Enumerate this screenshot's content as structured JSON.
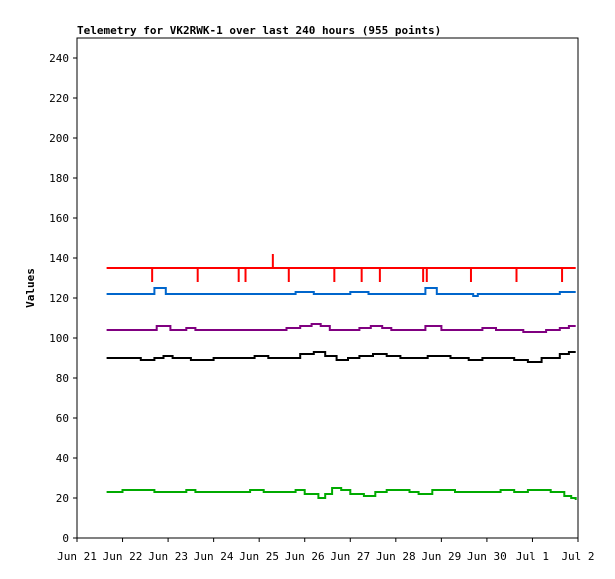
{
  "chart_data": {
    "type": "line",
    "title": "Telemetry for VK2RWK-1 over last 240 hours (955 points)",
    "xlabel": "",
    "ylabel": "Values",
    "x_tick_labels": [
      "Jun 21",
      "Jun 22",
      "Jun 23",
      "Jun 24",
      "Jun 25",
      "Jun 26",
      "Jun 27",
      "Jun 28",
      "Jun 29",
      "Jun 30",
      "Jul 1",
      "Jul 2"
    ],
    "xlim_days": [
      0,
      11
    ],
    "ylim": [
      0,
      250
    ],
    "y_ticks": [
      0,
      20,
      40,
      60,
      80,
      100,
      120,
      140,
      160,
      180,
      200,
      220,
      240
    ],
    "grid": false,
    "legend": "none",
    "series": [
      {
        "color": "#ff0000",
        "base": 135,
        "points": [
          {
            "x": 0.65,
            "y": 135
          },
          {
            "x": 1.65,
            "y": 135
          },
          {
            "x": 10.95,
            "y": 135
          }
        ],
        "spikes": [
          {
            "x": 1.65,
            "y": 128
          },
          {
            "x": 2.65,
            "y": 128
          },
          {
            "x": 3.55,
            "y": 128
          },
          {
            "x": 3.7,
            "y": 128
          },
          {
            "x": 4.3,
            "y": 142
          },
          {
            "x": 4.65,
            "y": 128
          },
          {
            "x": 5.65,
            "y": 128
          },
          {
            "x": 6.25,
            "y": 128
          },
          {
            "x": 6.65,
            "y": 128
          },
          {
            "x": 7.6,
            "y": 128
          },
          {
            "x": 7.68,
            "y": 128
          },
          {
            "x": 8.65,
            "y": 128
          },
          {
            "x": 9.65,
            "y": 128
          },
          {
            "x": 10.65,
            "y": 128
          }
        ]
      },
      {
        "color": "#0066cc",
        "points": [
          {
            "x": 0.65,
            "y": 122
          },
          {
            "x": 1.65,
            "y": 122
          },
          {
            "x": 1.7,
            "y": 125
          },
          {
            "x": 1.9,
            "y": 125
          },
          {
            "x": 1.95,
            "y": 122
          },
          {
            "x": 4.7,
            "y": 122
          },
          {
            "x": 4.8,
            "y": 123
          },
          {
            "x": 5.1,
            "y": 123
          },
          {
            "x": 5.2,
            "y": 122
          },
          {
            "x": 5.9,
            "y": 122
          },
          {
            "x": 6.0,
            "y": 123
          },
          {
            "x": 6.3,
            "y": 123
          },
          {
            "x": 6.4,
            "y": 122
          },
          {
            "x": 7.6,
            "y": 122
          },
          {
            "x": 7.65,
            "y": 125
          },
          {
            "x": 7.85,
            "y": 125
          },
          {
            "x": 7.9,
            "y": 122
          },
          {
            "x": 8.6,
            "y": 122
          },
          {
            "x": 8.7,
            "y": 121
          },
          {
            "x": 8.8,
            "y": 122
          },
          {
            "x": 10.5,
            "y": 122
          },
          {
            "x": 10.6,
            "y": 123
          },
          {
            "x": 10.95,
            "y": 123
          }
        ]
      },
      {
        "color": "#800080",
        "points": [
          {
            "x": 0.65,
            "y": 104
          },
          {
            "x": 1.65,
            "y": 104
          },
          {
            "x": 1.75,
            "y": 106
          },
          {
            "x": 1.95,
            "y": 106
          },
          {
            "x": 2.05,
            "y": 104
          },
          {
            "x": 2.4,
            "y": 105
          },
          {
            "x": 2.6,
            "y": 104
          },
          {
            "x": 4.3,
            "y": 104
          },
          {
            "x": 4.6,
            "y": 105
          },
          {
            "x": 4.9,
            "y": 106
          },
          {
            "x": 5.15,
            "y": 107
          },
          {
            "x": 5.35,
            "y": 106
          },
          {
            "x": 5.55,
            "y": 104
          },
          {
            "x": 6.2,
            "y": 105
          },
          {
            "x": 6.45,
            "y": 106
          },
          {
            "x": 6.7,
            "y": 105
          },
          {
            "x": 6.9,
            "y": 104
          },
          {
            "x": 7.5,
            "y": 104
          },
          {
            "x": 7.65,
            "y": 106
          },
          {
            "x": 7.85,
            "y": 106
          },
          {
            "x": 8.0,
            "y": 104
          },
          {
            "x": 8.6,
            "y": 104
          },
          {
            "x": 8.9,
            "y": 105
          },
          {
            "x": 9.2,
            "y": 104
          },
          {
            "x": 9.8,
            "y": 103
          },
          {
            "x": 10.3,
            "y": 104
          },
          {
            "x": 10.6,
            "y": 105
          },
          {
            "x": 10.8,
            "y": 106
          },
          {
            "x": 10.95,
            "y": 106
          }
        ]
      },
      {
        "color": "#000000",
        "points": [
          {
            "x": 0.65,
            "y": 90
          },
          {
            "x": 1.2,
            "y": 90
          },
          {
            "x": 1.4,
            "y": 89
          },
          {
            "x": 1.7,
            "y": 90
          },
          {
            "x": 1.9,
            "y": 91
          },
          {
            "x": 2.1,
            "y": 90
          },
          {
            "x": 2.5,
            "y": 89
          },
          {
            "x": 3.0,
            "y": 90
          },
          {
            "x": 3.5,
            "y": 90
          },
          {
            "x": 3.9,
            "y": 91
          },
          {
            "x": 4.2,
            "y": 90
          },
          {
            "x": 4.6,
            "y": 90
          },
          {
            "x": 4.9,
            "y": 92
          },
          {
            "x": 5.2,
            "y": 93
          },
          {
            "x": 5.45,
            "y": 91
          },
          {
            "x": 5.7,
            "y": 89
          },
          {
            "x": 5.95,
            "y": 90
          },
          {
            "x": 6.2,
            "y": 91
          },
          {
            "x": 6.5,
            "y": 92
          },
          {
            "x": 6.8,
            "y": 91
          },
          {
            "x": 7.1,
            "y": 90
          },
          {
            "x": 7.5,
            "y": 90
          },
          {
            "x": 7.7,
            "y": 91
          },
          {
            "x": 7.95,
            "y": 91
          },
          {
            "x": 8.2,
            "y": 90
          },
          {
            "x": 8.6,
            "y": 89
          },
          {
            "x": 8.9,
            "y": 90
          },
          {
            "x": 9.4,
            "y": 90
          },
          {
            "x": 9.6,
            "y": 89
          },
          {
            "x": 9.9,
            "y": 88
          },
          {
            "x": 10.2,
            "y": 90
          },
          {
            "x": 10.6,
            "y": 92
          },
          {
            "x": 10.8,
            "y": 93
          },
          {
            "x": 10.95,
            "y": 93
          }
        ]
      },
      {
        "color": "#00aa00",
        "points": [
          {
            "x": 0.65,
            "y": 23
          },
          {
            "x": 1.0,
            "y": 24
          },
          {
            "x": 1.5,
            "y": 24
          },
          {
            "x": 1.7,
            "y": 23
          },
          {
            "x": 2.2,
            "y": 23
          },
          {
            "x": 2.4,
            "y": 24
          },
          {
            "x": 2.6,
            "y": 23
          },
          {
            "x": 3.6,
            "y": 23
          },
          {
            "x": 3.8,
            "y": 24
          },
          {
            "x": 4.1,
            "y": 23
          },
          {
            "x": 4.6,
            "y": 23
          },
          {
            "x": 4.8,
            "y": 24
          },
          {
            "x": 5.0,
            "y": 22
          },
          {
            "x": 5.3,
            "y": 20
          },
          {
            "x": 5.45,
            "y": 22
          },
          {
            "x": 5.6,
            "y": 25
          },
          {
            "x": 5.8,
            "y": 24
          },
          {
            "x": 6.0,
            "y": 22
          },
          {
            "x": 6.3,
            "y": 21
          },
          {
            "x": 6.55,
            "y": 23
          },
          {
            "x": 6.8,
            "y": 24
          },
          {
            "x": 7.1,
            "y": 24
          },
          {
            "x": 7.3,
            "y": 23
          },
          {
            "x": 7.5,
            "y": 22
          },
          {
            "x": 7.8,
            "y": 24
          },
          {
            "x": 8.0,
            "y": 24
          },
          {
            "x": 8.3,
            "y": 23
          },
          {
            "x": 9.0,
            "y": 23
          },
          {
            "x": 9.3,
            "y": 24
          },
          {
            "x": 9.6,
            "y": 23
          },
          {
            "x": 9.9,
            "y": 24
          },
          {
            "x": 10.2,
            "y": 24
          },
          {
            "x": 10.4,
            "y": 23
          },
          {
            "x": 10.7,
            "y": 21
          },
          {
            "x": 10.85,
            "y": 20
          },
          {
            "x": 10.95,
            "y": 19
          }
        ]
      }
    ]
  }
}
